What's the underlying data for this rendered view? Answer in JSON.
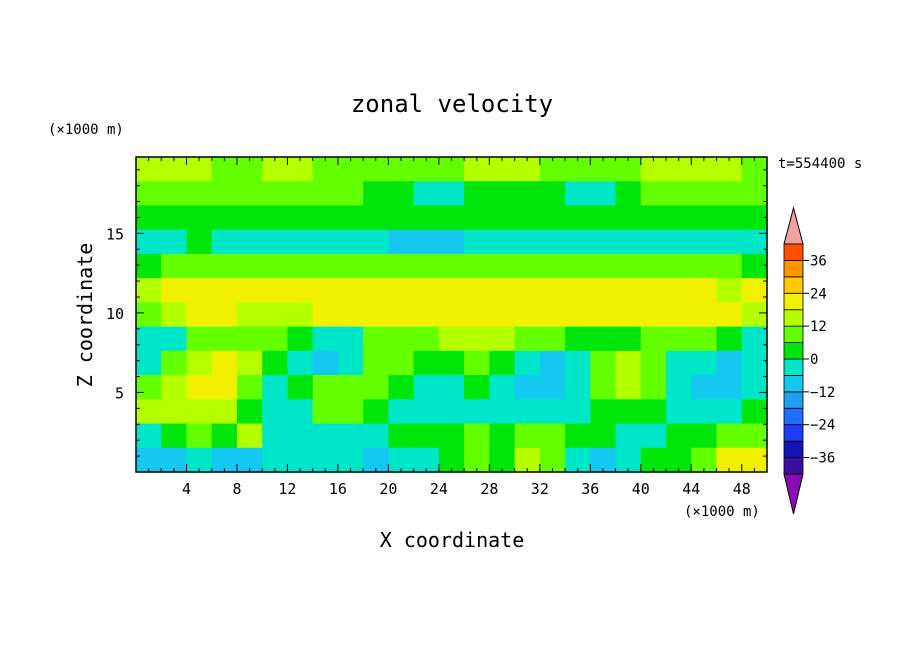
{
  "chart_data": {
    "type": "heatmap",
    "title": "zonal velocity",
    "xlabel": "X coordinate",
    "ylabel": "Z coordinate",
    "x_unit": "(×1000 m)",
    "y_unit": "(×1000 m)",
    "time_label": "t=554400 s",
    "xlim": [
      0,
      50
    ],
    "ylim": [
      0,
      19.8
    ],
    "x_ticks": [
      "4",
      "8",
      "12",
      "16",
      "20",
      "24",
      "28",
      "32",
      "36",
      "40",
      "44",
      "48"
    ],
    "y_ticks": [
      "5",
      "10",
      "15"
    ],
    "colorbar_ticks": [
      "36",
      "24",
      "12",
      "0",
      "−12",
      "−24",
      "−36"
    ],
    "colorbar_levels": [
      -42,
      -36,
      -30,
      -24,
      -18,
      -12,
      -6,
      0,
      6,
      12,
      18,
      24,
      30,
      36,
      42
    ],
    "colorbar_colors": [
      "#3a0f9e",
      "#1414b4",
      "#1e3cff",
      "#1e6eff",
      "#1ea0f0",
      "#14c8f0",
      "#00e6c8",
      "#00e60a",
      "#64ff00",
      "#b4ff00",
      "#f0f000",
      "#ffc800",
      "#ff9600",
      "#ff5000",
      "#e61414"
    ],
    "over_color": "#f5a0a0",
    "under_color": "#8c0ab4",
    "field_rows_top_to_bottom": [
      [
        2,
        2,
        2,
        1,
        1,
        2,
        2,
        1,
        1,
        1,
        1,
        1,
        1,
        2,
        2,
        2,
        1,
        1,
        1,
        1,
        2,
        2,
        2,
        2,
        1
      ],
      [
        1,
        1,
        1,
        1,
        1,
        1,
        1,
        1,
        1,
        0,
        0,
        -1,
        -1,
        0,
        0,
        0,
        0,
        -1,
        -1,
        0,
        1,
        1,
        1,
        1,
        1
      ],
      [
        0,
        0,
        0,
        0,
        0,
        0,
        0,
        0,
        0,
        0,
        0,
        0,
        0,
        0,
        0,
        0,
        0,
        0,
        0,
        0,
        0,
        0,
        0,
        0,
        0
      ],
      [
        -1,
        -1,
        0,
        -1,
        -1,
        -1,
        -1,
        -1,
        -1,
        -1,
        -2,
        -2,
        -2,
        -1,
        -1,
        -1,
        -1,
        -1,
        -1,
        -1,
        -1,
        -1,
        -1,
        -1,
        -1
      ],
      [
        0,
        1,
        1,
        1,
        1,
        1,
        1,
        1,
        1,
        1,
        1,
        1,
        1,
        1,
        1,
        1,
        1,
        1,
        1,
        1,
        1,
        1,
        1,
        1,
        0
      ],
      [
        2,
        3,
        3,
        3,
        3,
        3,
        3,
        3,
        3,
        3,
        3,
        3,
        3,
        3,
        3,
        3,
        3,
        3,
        3,
        3,
        3,
        3,
        3,
        2,
        3
      ],
      [
        1,
        2,
        3,
        3,
        2,
        2,
        2,
        3,
        3,
        3,
        3,
        3,
        3,
        3,
        3,
        3,
        3,
        3,
        3,
        3,
        3,
        3,
        3,
        3,
        2
      ],
      [
        -1,
        -1,
        1,
        1,
        1,
        1,
        0,
        -1,
        -1,
        1,
        1,
        1,
        2,
        2,
        2,
        1,
        1,
        0,
        0,
        0,
        1,
        1,
        1,
        0,
        -1
      ],
      [
        -1,
        1,
        2,
        3,
        2,
        0,
        -1,
        -2,
        -1,
        1,
        1,
        0,
        0,
        1,
        0,
        -1,
        -2,
        -1,
        1,
        2,
        1,
        -1,
        -1,
        -2,
        -1
      ],
      [
        1,
        2,
        3,
        3,
        1,
        -1,
        0,
        1,
        1,
        1,
        0,
        -1,
        -1,
        0,
        -1,
        -2,
        -2,
        -1,
        1,
        2,
        1,
        -1,
        -2,
        -2,
        -1
      ],
      [
        2,
        2,
        2,
        2,
        0,
        -1,
        -1,
        1,
        1,
        0,
        -1,
        -1,
        -1,
        -1,
        -1,
        -1,
        -1,
        -1,
        0,
        0,
        0,
        -1,
        -1,
        -1,
        0
      ],
      [
        -1,
        0,
        1,
        0,
        2,
        -1,
        -1,
        -1,
        -1,
        -1,
        0,
        0,
        0,
        1,
        0,
        1,
        1,
        0,
        0,
        -1,
        -1,
        0,
        0,
        1,
        1
      ],
      [
        -2,
        -2,
        -1,
        -2,
        -2,
        -1,
        -1,
        -1,
        -1,
        -2,
        -1,
        -1,
        0,
        1,
        0,
        2,
        1,
        -1,
        -2,
        -1,
        0,
        0,
        1,
        3,
        3
      ]
    ]
  }
}
